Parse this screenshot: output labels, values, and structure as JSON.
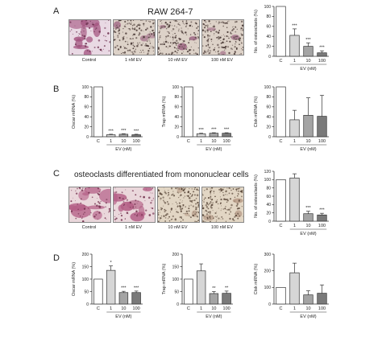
{
  "panels": {
    "A": {
      "letter": "A",
      "title": "RAW 264-7"
    },
    "B": {
      "letter": "B"
    },
    "C": {
      "letter": "C",
      "title": "osteoclasts differentiated from mononuclear cells"
    },
    "D": {
      "letter": "D"
    }
  },
  "image_labels": [
    "Control",
    "1 nM EV",
    "10 nM EV",
    "100 nM EV"
  ],
  "image_palettes": {
    "control": {
      "bg": "#e9d9e4",
      "blob": "#a2507d",
      "dot": "#6e3150"
    },
    "treated": {
      "bg": "#ddd2c8",
      "blob": "#a06a86",
      "dot": "#4a3a36"
    },
    "c_control": {
      "bg": "#ead7db",
      "blob": "#b45f86",
      "dot": "#74324f"
    },
    "c_treated": {
      "bg": "#e2d6c4",
      "blob": "#b69a86",
      "dot": "#5c4a3c"
    }
  },
  "colors": {
    "control_bar": "#ffffff",
    "one_nm_bar": "#d6d6d6",
    "ten_nm_bar": "#a4a4a4",
    "hundred_nm_bar": "#7a7a7a",
    "axis": "#333333"
  },
  "chart_data": [
    {
      "id": "A_osteoclasts",
      "type": "bar",
      "ylabel": "No. of osteoclasts (%)",
      "xlabel": "EV (nM)",
      "categories": [
        "C",
        "1",
        "10",
        "100"
      ],
      "values": [
        100,
        42,
        20,
        7
      ],
      "errors": [
        0,
        13,
        7,
        4
      ],
      "ylim": [
        0,
        100
      ],
      "yticks": [
        0,
        20,
        40,
        60,
        80,
        100
      ],
      "significance": [
        "",
        "***",
        "***",
        "***"
      ]
    },
    {
      "id": "B_oscar",
      "type": "bar",
      "ylabel": "Oscar mRNA (%)",
      "xlabel": "EV (nM)",
      "categories": [
        "C",
        "1",
        "10",
        "100"
      ],
      "values": [
        100,
        4,
        5,
        4
      ],
      "errors": [
        0,
        1,
        1,
        1
      ],
      "ylim": [
        0,
        100
      ],
      "yticks": [
        0,
        20,
        40,
        60,
        80,
        100
      ],
      "significance": [
        "",
        "***",
        "***",
        "***"
      ]
    },
    {
      "id": "B_trap",
      "type": "bar",
      "ylabel": "Trap mRNA (%)",
      "xlabel": "EV (nM)",
      "categories": [
        "C",
        "1",
        "10",
        "100"
      ],
      "values": [
        100,
        6,
        7,
        7
      ],
      "errors": [
        0,
        1,
        1,
        1
      ],
      "ylim": [
        0,
        100
      ],
      "yticks": [
        0,
        20,
        40,
        60,
        80,
        100
      ],
      "significance": [
        "",
        "***",
        "***",
        "***"
      ]
    },
    {
      "id": "B_ctsk",
      "type": "bar",
      "ylabel": "Ctsk mRNA (%)",
      "xlabel": "EV (nM)",
      "categories": [
        "C",
        "1",
        "10",
        "100"
      ],
      "values": [
        100,
        34,
        43,
        41
      ],
      "errors": [
        0,
        19,
        35,
        42
      ],
      "ylim": [
        0,
        100
      ],
      "yticks": [
        0,
        20,
        40,
        60,
        80,
        100
      ],
      "significance": [
        "",
        "",
        "",
        ""
      ]
    },
    {
      "id": "C_osteoclasts",
      "type": "bar",
      "ylabel": "No. of osteoclasts (%)",
      "xlabel": "EV (nM)",
      "categories": [
        "C",
        "1",
        "10",
        "100"
      ],
      "values": [
        100,
        104,
        18,
        15
      ],
      "errors": [
        0,
        10,
        6,
        4
      ],
      "ylim": [
        0,
        120
      ],
      "yticks": [
        0,
        20,
        40,
        60,
        80,
        100,
        120
      ],
      "significance": [
        "",
        "",
        "***",
        "***"
      ]
    },
    {
      "id": "D_oscar",
      "type": "bar",
      "ylabel": "Oscar mRNA (%)",
      "xlabel": "EV (nM)",
      "categories": [
        "C",
        "1",
        "10",
        "100"
      ],
      "values": [
        100,
        135,
        46,
        46
      ],
      "errors": [
        0,
        18,
        5,
        6
      ],
      "ylim": [
        0,
        200
      ],
      "yticks": [
        0,
        50,
        100,
        150,
        200
      ],
      "significance": [
        "",
        "*",
        "***",
        "***"
      ]
    },
    {
      "id": "D_trap",
      "type": "bar",
      "ylabel": "Trap mRNA (%)",
      "xlabel": "EV (nM)",
      "categories": [
        "C",
        "1",
        "10",
        "100"
      ],
      "values": [
        100,
        133,
        42,
        43
      ],
      "errors": [
        0,
        28,
        8,
        9
      ],
      "ylim": [
        0,
        200
      ],
      "yticks": [
        0,
        50,
        100,
        150,
        200
      ],
      "significance": [
        "",
        "",
        "**",
        "**"
      ]
    },
    {
      "id": "D_ctsk",
      "type": "bar",
      "ylabel": "Ctsk mRNA (%)",
      "xlabel": "EV (nM)",
      "categories": [
        "C",
        "1",
        "10",
        "100"
      ],
      "values": [
        100,
        188,
        55,
        65
      ],
      "errors": [
        0,
        58,
        25,
        50
      ],
      "ylim": [
        0,
        300
      ],
      "yticks": [
        0,
        100,
        200,
        300
      ],
      "significance": [
        "",
        "",
        "",
        ""
      ]
    }
  ]
}
